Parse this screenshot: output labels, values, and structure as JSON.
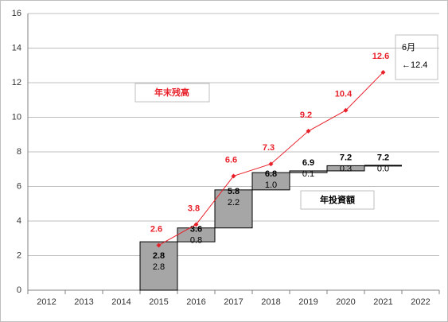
{
  "chart_data": {
    "type": "waterfall-line",
    "categories": [
      "2012",
      "2013",
      "2014",
      "2015",
      "2016",
      "2017",
      "2018",
      "2019",
      "2020",
      "2021",
      "2022"
    ],
    "series": [
      {
        "name": "年投資額",
        "type": "waterfall",
        "color": "#a6a6a6",
        "values": [
          null,
          null,
          null,
          2.8,
          0.8,
          2.2,
          1.0,
          0.1,
          0.3,
          0.0,
          null
        ],
        "value_labels": [
          null,
          null,
          null,
          "2.8",
          "0.8",
          "2.2",
          "1.0",
          "0.1",
          "0.3",
          "0.0",
          null
        ],
        "total_labels": [
          null,
          null,
          null,
          "2.8",
          "3.6",
          "5.8",
          "6.8",
          "6.9",
          "7.2",
          "7.2",
          null
        ]
      },
      {
        "name": "年末残高",
        "type": "line",
        "color": "#e8202a",
        "values": [
          null,
          null,
          null,
          2.6,
          3.8,
          6.6,
          7.3,
          9.2,
          10.4,
          12.6,
          null
        ]
      }
    ],
    "annotation": [
      "6月",
      "←12.4"
    ],
    "ylim": [
      0,
      16
    ],
    "yticks": [
      0,
      2,
      4,
      6,
      8,
      10,
      12,
      14,
      16
    ],
    "grid": true
  }
}
